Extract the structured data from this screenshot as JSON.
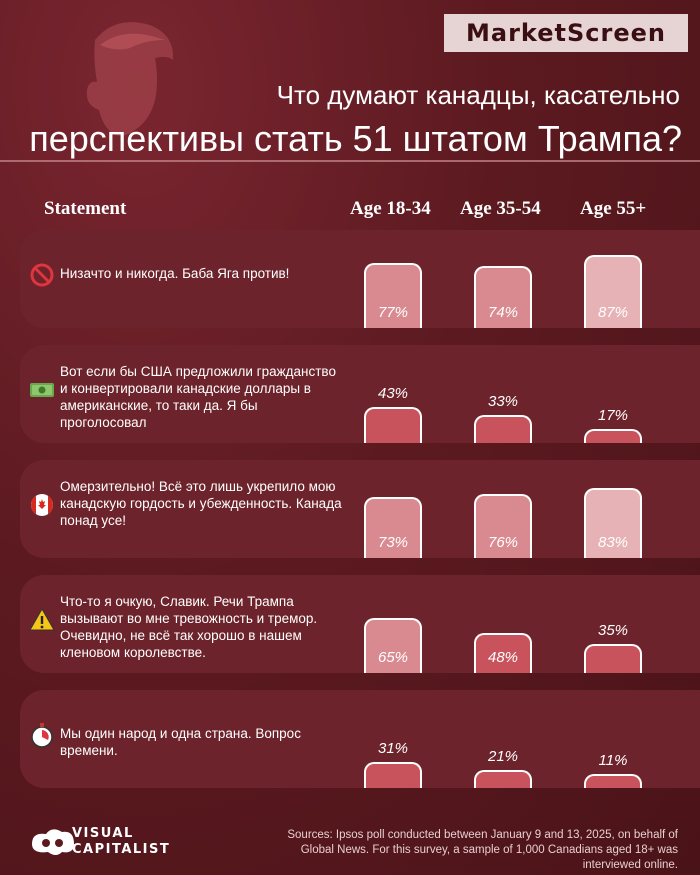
{
  "brand": "MarketScreen",
  "title_line1": "Что думают канадцы, касательно",
  "title_line2": "перспективы стать 51 штатом Трампа?",
  "colors": {
    "background": "#5c1a20",
    "row": "#6d232b",
    "bar_light": "#e7b2b6",
    "bar_mid": "#d98a90",
    "bar_dark": "#c9535c"
  },
  "chart_data": {
    "type": "bar",
    "headers": {
      "statement": "Statement",
      "age_groups": [
        "Age 18-34",
        "Age 35-54",
        "Age 55+"
      ]
    },
    "rows": [
      {
        "icon": "prohibited-icon",
        "statement": "Низачто и никогда. Баба Яга против!",
        "values": [
          77,
          74,
          87
        ],
        "labels": [
          "77%",
          "74%",
          "87%"
        ]
      },
      {
        "icon": "money-icon",
        "statement": "Вот если бы США предложили гражданство и конвертировали канадские доллары в американские, то таки да. Я бы проголосовал",
        "values": [
          43,
          33,
          17
        ],
        "labels": [
          "43%",
          "33%",
          "17%"
        ]
      },
      {
        "icon": "canada-flag-icon",
        "statement": "Омерзительно! Всё это лишь укрепило мою канадскую гордость и убежденность. Канада понад усе!",
        "values": [
          73,
          76,
          83
        ],
        "labels": [
          "73%",
          "76%",
          "83%"
        ]
      },
      {
        "icon": "warning-icon",
        "statement": "Что-то я очкую, Славик. Речи Трампа вызывают во мне тревожность и тремор. Очевидно, не всё так хорошо в нашем кленовом королевстве.",
        "values": [
          65,
          48,
          35
        ],
        "labels": [
          "65%",
          "48%",
          "35%"
        ]
      },
      {
        "icon": "stopwatch-icon",
        "statement": "Мы один народ и одна страна. Вопрос времени.",
        "values": [
          31,
          21,
          11
        ],
        "labels": [
          "31%",
          "21%",
          "11%"
        ]
      }
    ]
  },
  "footer": {
    "logo_line1": "VISUAL",
    "logo_line2": "CAPITALIST",
    "source": "Sources: Ipsos poll conducted between January 9 and 13, 2025, on behalf of Global News. For this survey, a sample of 1,000 Canadians aged 18+ was interviewed online."
  }
}
